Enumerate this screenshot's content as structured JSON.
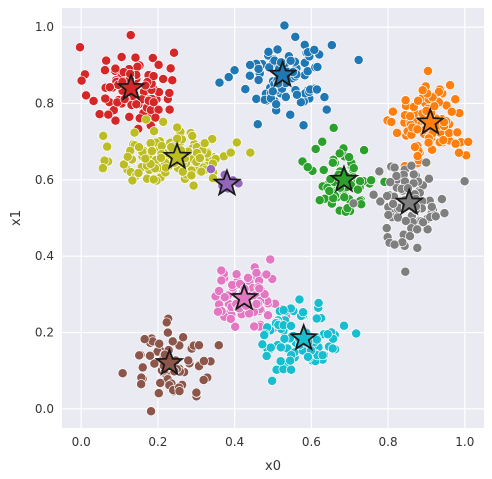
{
  "chart_data": {
    "type": "scatter",
    "title": "",
    "xlabel": "x0",
    "ylabel": "x1",
    "xlim": [
      -0.05,
      1.05
    ],
    "ylim": [
      -0.05,
      1.05
    ],
    "xticks": [
      "0.0",
      "0.2",
      "0.4",
      "0.6",
      "0.8",
      "1.0"
    ],
    "yticks": [
      "0.0",
      "0.2",
      "0.4",
      "0.6",
      "0.8",
      "1.0"
    ],
    "grid": true,
    "legend": "none",
    "background": "#eaeaf2",
    "clusters": [
      {
        "color": "#d62728",
        "center": [
          0.13,
          0.84
        ],
        "spread": [
          0.055,
          0.055
        ],
        "n": 90
      },
      {
        "color": "#1f77b4",
        "center": [
          0.53,
          0.875
        ],
        "spread": [
          0.06,
          0.05
        ],
        "n": 95
      },
      {
        "color": "#ff7f0e",
        "center": [
          0.91,
          0.75
        ],
        "spread": [
          0.045,
          0.05
        ],
        "n": 100
      },
      {
        "color": "#bcbd22",
        "center": [
          0.25,
          0.66
        ],
        "spread": [
          0.075,
          0.035
        ],
        "n": 150
      },
      {
        "color": "#9467bd",
        "center": [
          0.375,
          0.59
        ],
        "spread": [
          0.02,
          0.02
        ],
        "n": 8
      },
      {
        "color": "#2ca02c",
        "center": [
          0.685,
          0.6
        ],
        "spread": [
          0.04,
          0.045
        ],
        "n": 75
      },
      {
        "color": "#7f7f7f",
        "center": [
          0.855,
          0.54
        ],
        "spread": [
          0.05,
          0.055
        ],
        "n": 85
      },
      {
        "color": "#e377c2",
        "center": [
          0.43,
          0.29
        ],
        "spread": [
          0.045,
          0.04
        ],
        "n": 80
      },
      {
        "color": "#17becf",
        "center": [
          0.575,
          0.185
        ],
        "spread": [
          0.05,
          0.045
        ],
        "n": 90
      },
      {
        "color": "#8c564b",
        "center": [
          0.235,
          0.12
        ],
        "spread": [
          0.055,
          0.045
        ],
        "n": 70
      }
    ],
    "centroids": {
      "marker": "star",
      "points": [
        {
          "x": 0.13,
          "y": 0.84,
          "color": "#d62728"
        },
        {
          "x": 0.525,
          "y": 0.875,
          "color": "#1f77b4"
        },
        {
          "x": 0.91,
          "y": 0.75,
          "color": "#ff7f0e"
        },
        {
          "x": 0.25,
          "y": 0.66,
          "color": "#bcbd22"
        },
        {
          "x": 0.38,
          "y": 0.59,
          "color": "#9467bd"
        },
        {
          "x": 0.685,
          "y": 0.6,
          "color": "#2ca02c"
        },
        {
          "x": 0.855,
          "y": 0.54,
          "color": "#7f7f7f"
        },
        {
          "x": 0.425,
          "y": 0.29,
          "color": "#e377c2"
        },
        {
          "x": 0.58,
          "y": 0.185,
          "color": "#17becf"
        },
        {
          "x": 0.23,
          "y": 0.12,
          "color": "#8c564b"
        }
      ]
    }
  }
}
